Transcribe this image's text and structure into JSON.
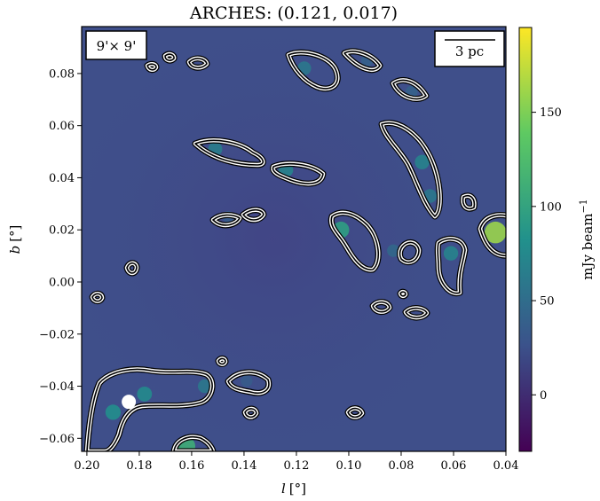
{
  "chart_data": {
    "type": "heatmap",
    "title": "ARCHES: (0.121, 0.017)",
    "xlabel_var": "l",
    "xlabel_unit": "[°]",
    "ylabel_var": "b",
    "ylabel_unit": "[°]",
    "xlim": [
      0.202,
      0.04
    ],
    "ylim": [
      -0.065,
      0.098
    ],
    "x_ticks": [
      0.2,
      0.18,
      0.16,
      0.14,
      0.12,
      0.1,
      0.08,
      0.06,
      0.04
    ],
    "x_tick_labels": [
      "0.20",
      "0.18",
      "0.16",
      "0.14",
      "0.12",
      "0.10",
      "0.08",
      "0.06",
      "0.04"
    ],
    "y_ticks": [
      0.08,
      0.06,
      0.04,
      0.02,
      0.0,
      -0.02,
      -0.04,
      -0.06
    ],
    "y_tick_labels": [
      "0.08",
      "0.06",
      "0.04",
      "0.02",
      "0.00",
      "−0.02",
      "−0.04",
      "−0.06"
    ],
    "colorbar": {
      "label": "mJy beam",
      "label_exp": "−1",
      "range": [
        -30,
        195
      ],
      "ticks": [
        0,
        50,
        100,
        150
      ],
      "tick_labels": [
        "0",
        "50",
        "100",
        "150"
      ],
      "colormap": "viridis",
      "colors": [
        "#440154",
        "#3b528b",
        "#21918c",
        "#5ec962",
        "#fde725"
      ]
    },
    "field_size_label": "9'× 9'",
    "scale_bar_label": "3 pc",
    "background_color": "#3f4f8a",
    "contour_color": "#ffffff",
    "marker": {
      "l": 0.184,
      "b": -0.046,
      "color": "#ffffff"
    },
    "sources": [
      {
        "l": 0.117,
        "b": 0.082,
        "peak": 60
      },
      {
        "l": 0.093,
        "b": 0.085,
        "peak": 40
      },
      {
        "l": 0.076,
        "b": 0.073,
        "peak": 40
      },
      {
        "l": 0.072,
        "b": 0.046,
        "peak": 70
      },
      {
        "l": 0.069,
        "b": 0.033,
        "peak": 60
      },
      {
        "l": 0.151,
        "b": 0.051,
        "peak": 65
      },
      {
        "l": 0.124,
        "b": 0.043,
        "peak": 70
      },
      {
        "l": 0.103,
        "b": 0.02,
        "peak": 95
      },
      {
        "l": 0.044,
        "b": 0.019,
        "peak": 160
      },
      {
        "l": 0.061,
        "b": 0.011,
        "peak": 70
      },
      {
        "l": 0.146,
        "b": 0.025,
        "peak": 35
      },
      {
        "l": 0.083,
        "b": 0.012,
        "peak": 45
      },
      {
        "l": 0.178,
        "b": -0.043,
        "peak": 75
      },
      {
        "l": 0.19,
        "b": -0.05,
        "peak": 80
      },
      {
        "l": 0.155,
        "b": -0.04,
        "peak": 60
      },
      {
        "l": 0.139,
        "b": -0.038,
        "peak": 35
      },
      {
        "l": 0.162,
        "b": -0.063,
        "peak": 110
      }
    ]
  }
}
